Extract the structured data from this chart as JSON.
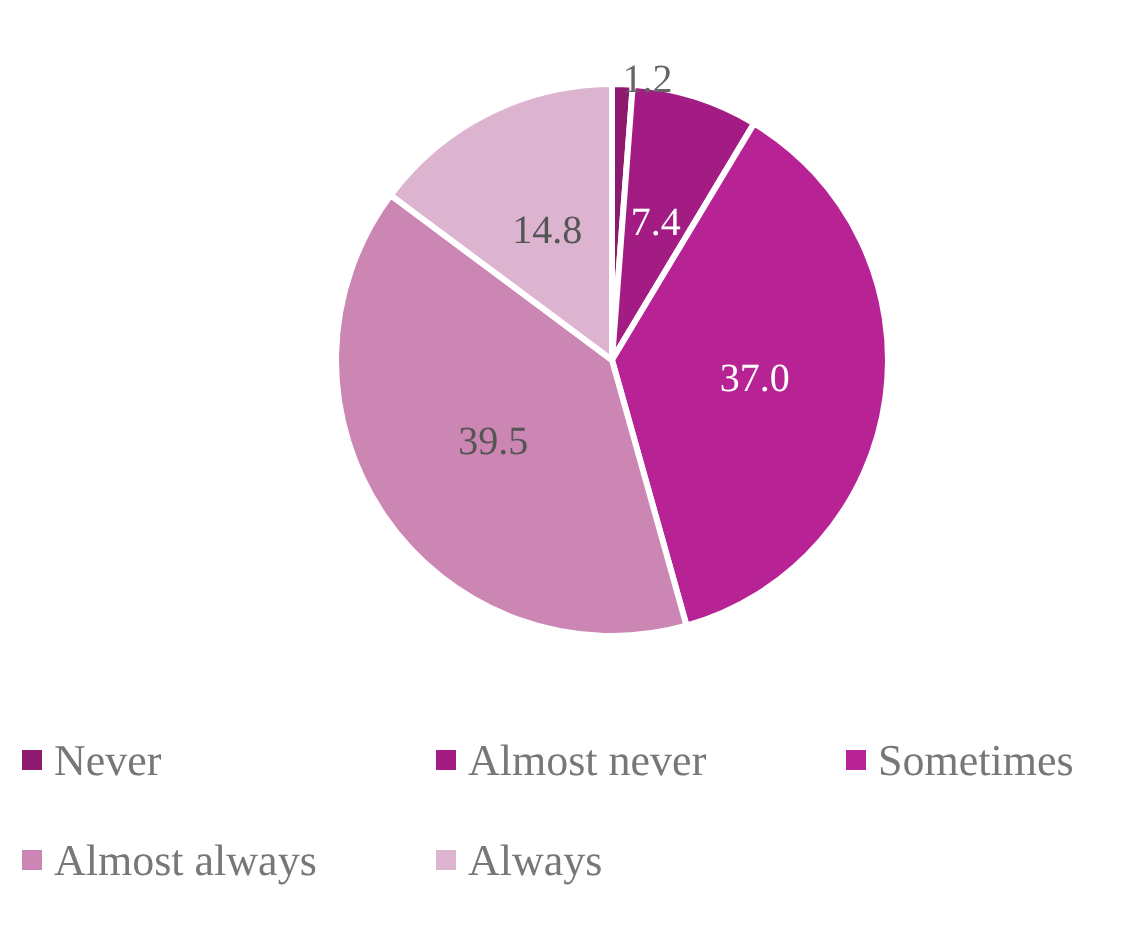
{
  "chart_data": {
    "type": "pie",
    "categories": [
      "Never",
      "Almost never",
      "Sometimes",
      "Almost always",
      "Always"
    ],
    "values": [
      1.2,
      7.4,
      37.0,
      39.5,
      14.8
    ],
    "value_labels": [
      "1.2",
      "7.4",
      "37.0",
      "39.5",
      "14.8"
    ],
    "colors": [
      "#8c1a6e",
      "#a21c84",
      "#b72395",
      "#cb86b3",
      "#dcb4cf"
    ],
    "legend": "bottom"
  }
}
